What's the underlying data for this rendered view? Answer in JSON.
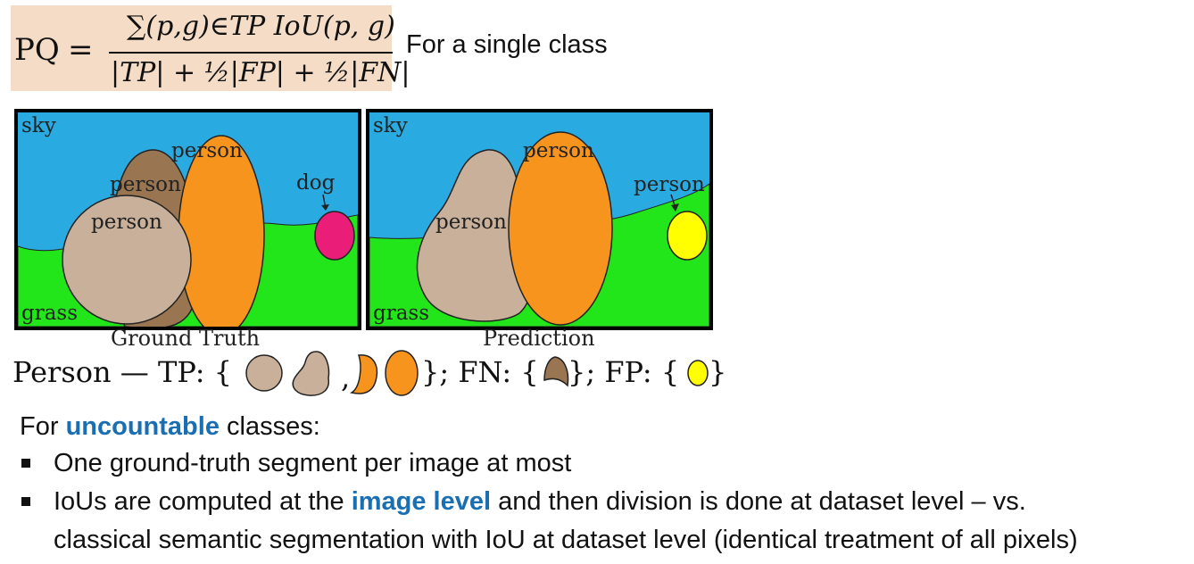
{
  "formula": {
    "lhs": "PQ",
    "equals": "=",
    "numerator": "∑(p,g)∈TP IoU(p, g)",
    "denominator": "|TP| + ½|FP| + ½|FN|",
    "note": "For a single class"
  },
  "ground_truth": {
    "labels": [
      "sky",
      "person",
      "person",
      "dog",
      "person",
      "grass"
    ],
    "caption": "Ground Truth"
  },
  "prediction": {
    "labels": [
      "sky",
      "person",
      "person",
      "person",
      "grass"
    ],
    "caption": "Prediction"
  },
  "person_row": {
    "prefix": "Person — TP: {",
    "comma": ",",
    "fn_prefix": "}; FN: {",
    "fp_prefix": "}; FP: {",
    "end": "}"
  },
  "colors": {
    "sky": "#29abe2",
    "grass": "#22e51a",
    "person_tan": "#c8b09a",
    "person_brown": "#9a7552",
    "person_orange": "#f7941d",
    "dog_magenta": "#ea1e78",
    "fp_yellow": "#ffff00",
    "highlight_blue": "#1a6fb3"
  },
  "uncountable": {
    "lead": "For ",
    "highlight": "uncountable",
    "tail": " classes:"
  },
  "bullets": [
    {
      "text": "One ground-truth segment per image at most"
    },
    {
      "text_a": "IoUs are computed at the ",
      "highlight": "image level",
      "text_b": " and then division is done at dataset level – vs.",
      "line2": "classical semantic segmentation with IoU at dataset level (identical treatment of all pixels)"
    }
  ]
}
